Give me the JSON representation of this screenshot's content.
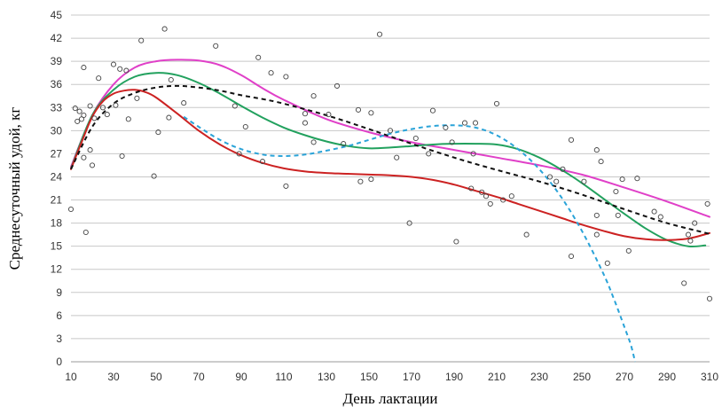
{
  "chart_data": {
    "type": "scatter",
    "title": "",
    "xlabel": "День лактации",
    "ylabel": "Среднесуточный удой, кг",
    "xlim": [
      10,
      310
    ],
    "ylim": [
      0,
      45
    ],
    "xticks": [
      10,
      30,
      50,
      70,
      90,
      110,
      130,
      150,
      170,
      190,
      210,
      230,
      250,
      270,
      290,
      310
    ],
    "yticks": [
      0,
      3,
      6,
      9,
      12,
      15,
      18,
      21,
      24,
      27,
      30,
      33,
      36,
      39,
      42,
      45
    ],
    "grid": true,
    "legend": "none",
    "colors": {
      "magenta": "#e040c8",
      "green": "#22a15e",
      "red": "#cc2222",
      "black_dashed": "#111111",
      "blue_dashed": "#2aa3d8",
      "points": "#444444"
    },
    "scatter_points": [
      [
        10,
        19.8
      ],
      [
        12,
        32.9
      ],
      [
        13,
        31.2
      ],
      [
        14,
        32.5
      ],
      [
        15,
        31.5
      ],
      [
        16,
        38.2
      ],
      [
        16,
        32.0
      ],
      [
        16,
        26.5
      ],
      [
        17,
        16.8
      ],
      [
        19,
        33.2
      ],
      [
        19,
        27.5
      ],
      [
        20,
        25.5
      ],
      [
        21,
        31.6
      ],
      [
        23,
        36.8
      ],
      [
        25,
        33.0
      ],
      [
        27,
        32.1
      ],
      [
        30,
        38.6
      ],
      [
        31,
        33.3
      ],
      [
        33,
        38.0
      ],
      [
        34,
        26.7
      ],
      [
        36,
        37.8
      ],
      [
        37,
        31.5
      ],
      [
        41,
        34.2
      ],
      [
        43,
        41.7
      ],
      [
        49,
        24.1
      ],
      [
        51,
        29.8
      ],
      [
        54,
        43.2
      ],
      [
        56,
        31.7
      ],
      [
        57,
        36.6
      ],
      [
        63,
        33.6
      ],
      [
        78,
        41.0
      ],
      [
        87,
        33.2
      ],
      [
        89,
        27.0
      ],
      [
        92,
        30.5
      ],
      [
        98,
        39.5
      ],
      [
        100,
        26.0
      ],
      [
        104,
        37.5
      ],
      [
        111,
        37.0
      ],
      [
        111,
        22.8
      ],
      [
        120,
        31.0
      ],
      [
        120,
        32.2
      ],
      [
        124,
        34.5
      ],
      [
        124,
        28.5
      ],
      [
        131,
        32.1
      ],
      [
        135,
        35.8
      ],
      [
        138,
        28.3
      ],
      [
        145,
        32.7
      ],
      [
        146,
        23.4
      ],
      [
        151,
        32.3
      ],
      [
        151,
        23.7
      ],
      [
        155,
        42.5
      ],
      [
        160,
        30.0
      ],
      [
        163,
        26.5
      ],
      [
        169,
        18.0
      ],
      [
        172,
        29.0
      ],
      [
        178,
        27.0
      ],
      [
        180,
        32.6
      ],
      [
        186,
        30.4
      ],
      [
        189,
        28.5
      ],
      [
        191,
        15.6
      ],
      [
        195,
        31.0
      ],
      [
        198,
        22.5
      ],
      [
        199,
        27.0
      ],
      [
        200,
        31.0
      ],
      [
        203,
        22.0
      ],
      [
        205,
        21.5
      ],
      [
        207,
        20.5
      ],
      [
        210,
        33.5
      ],
      [
        213,
        21.0
      ],
      [
        217,
        21.5
      ],
      [
        224,
        16.5
      ],
      [
        235,
        24.0
      ],
      [
        238,
        23.4
      ],
      [
        241,
        25.0
      ],
      [
        245,
        28.8
      ],
      [
        245,
        13.7
      ],
      [
        251,
        23.4
      ],
      [
        257,
        27.5
      ],
      [
        257,
        19.0
      ],
      [
        257,
        16.5
      ],
      [
        259,
        26.0
      ],
      [
        262,
        12.8
      ],
      [
        266,
        22.1
      ],
      [
        267,
        19.0
      ],
      [
        269,
        23.7
      ],
      [
        272,
        14.4
      ],
      [
        276,
        23.8
      ],
      [
        284,
        19.5
      ],
      [
        287,
        18.8
      ],
      [
        298,
        10.2
      ],
      [
        300,
        16.5
      ],
      [
        301,
        15.7
      ],
      [
        303,
        18.0
      ],
      [
        309,
        20.5
      ],
      [
        310,
        8.2
      ]
    ],
    "series": [
      {
        "style": "solid",
        "color": "#e040c8",
        "points": [
          [
            10,
            25.3
          ],
          [
            20,
            32.0
          ],
          [
            30,
            36.0
          ],
          [
            40,
            38.2
          ],
          [
            50,
            39.0
          ],
          [
            60,
            39.2
          ],
          [
            70,
            39.1
          ],
          [
            80,
            38.5
          ],
          [
            90,
            37.2
          ],
          [
            100,
            35.5
          ],
          [
            110,
            34.0
          ],
          [
            130,
            31.5
          ],
          [
            150,
            29.8
          ],
          [
            170,
            28.5
          ],
          [
            190,
            27.5
          ],
          [
            210,
            26.5
          ],
          [
            230,
            25.5
          ],
          [
            250,
            24.3
          ],
          [
            270,
            22.6
          ],
          [
            290,
            20.8
          ],
          [
            310,
            18.8
          ]
        ]
      },
      {
        "style": "solid",
        "color": "#22a15e",
        "points": [
          [
            10,
            25.1
          ],
          [
            20,
            32.0
          ],
          [
            30,
            35.3
          ],
          [
            40,
            37.0
          ],
          [
            50,
            37.5
          ],
          [
            60,
            37.2
          ],
          [
            70,
            36.2
          ],
          [
            80,
            34.8
          ],
          [
            90,
            33.2
          ],
          [
            100,
            31.7
          ],
          [
            110,
            30.4
          ],
          [
            120,
            29.4
          ],
          [
            130,
            28.6
          ],
          [
            140,
            28.0
          ],
          [
            150,
            27.7
          ],
          [
            160,
            27.8
          ],
          [
            170,
            28.0
          ],
          [
            180,
            28.2
          ],
          [
            190,
            28.3
          ],
          [
            200,
            28.3
          ],
          [
            210,
            28.2
          ],
          [
            220,
            27.6
          ],
          [
            230,
            26.5
          ],
          [
            240,
            25.0
          ],
          [
            250,
            23.2
          ],
          [
            260,
            21.2
          ],
          [
            270,
            19.2
          ],
          [
            280,
            17.3
          ],
          [
            290,
            15.8
          ],
          [
            300,
            15.0
          ],
          [
            308,
            15.1
          ]
        ]
      },
      {
        "style": "solid",
        "color": "#cc2222",
        "points": [
          [
            10,
            25.0
          ],
          [
            15,
            28.5
          ],
          [
            20,
            31.8
          ],
          [
            25,
            33.8
          ],
          [
            30,
            34.8
          ],
          [
            35,
            35.2
          ],
          [
            40,
            35.3
          ],
          [
            45,
            35.0
          ],
          [
            50,
            34.3
          ],
          [
            60,
            32.2
          ],
          [
            70,
            30.0
          ],
          [
            80,
            28.2
          ],
          [
            90,
            26.8
          ],
          [
            100,
            25.8
          ],
          [
            110,
            25.1
          ],
          [
            120,
            24.7
          ],
          [
            130,
            24.5
          ],
          [
            140,
            24.4
          ],
          [
            150,
            24.3
          ],
          [
            160,
            24.2
          ],
          [
            170,
            24.0
          ],
          [
            180,
            23.6
          ],
          [
            190,
            23.0
          ],
          [
            200,
            22.2
          ],
          [
            210,
            21.4
          ],
          [
            220,
            20.5
          ],
          [
            230,
            19.6
          ],
          [
            240,
            18.7
          ],
          [
            250,
            17.8
          ],
          [
            260,
            17.0
          ],
          [
            270,
            16.3
          ],
          [
            280,
            15.9
          ],
          [
            290,
            15.8
          ],
          [
            300,
            16.0
          ],
          [
            310,
            16.7
          ]
        ]
      },
      {
        "style": "dashed",
        "color": "#111111",
        "points": [
          [
            10,
            25.0
          ],
          [
            20,
            30.5
          ],
          [
            30,
            33.5
          ],
          [
            40,
            34.9
          ],
          [
            50,
            35.6
          ],
          [
            60,
            35.8
          ],
          [
            70,
            35.6
          ],
          [
            80,
            35.2
          ],
          [
            90,
            34.6
          ],
          [
            100,
            34.1
          ],
          [
            110,
            33.5
          ],
          [
            130,
            32.0
          ],
          [
            150,
            30.2
          ],
          [
            170,
            28.3
          ],
          [
            190,
            26.5
          ],
          [
            210,
            24.9
          ],
          [
            230,
            23.4
          ],
          [
            250,
            21.7
          ],
          [
            270,
            19.8
          ],
          [
            290,
            18.0
          ],
          [
            310,
            16.6
          ]
        ]
      },
      {
        "style": "dashed",
        "color": "#2aa3d8",
        "points": [
          [
            63,
            31.8
          ],
          [
            70,
            30.5
          ],
          [
            80,
            28.8
          ],
          [
            90,
            27.6
          ],
          [
            100,
            26.9
          ],
          [
            110,
            26.7
          ],
          [
            120,
            26.9
          ],
          [
            130,
            27.4
          ],
          [
            140,
            28.0
          ],
          [
            150,
            28.8
          ],
          [
            160,
            29.6
          ],
          [
            170,
            30.2
          ],
          [
            180,
            30.6
          ],
          [
            190,
            30.7
          ],
          [
            200,
            30.4
          ],
          [
            210,
            29.4
          ],
          [
            220,
            27.6
          ],
          [
            230,
            25.0
          ],
          [
            240,
            21.5
          ],
          [
            250,
            17.0
          ],
          [
            260,
            11.5
          ],
          [
            265,
            8.2
          ],
          [
            270,
            4.5
          ],
          [
            273,
            2.2
          ],
          [
            275,
            0.0
          ]
        ]
      }
    ]
  }
}
